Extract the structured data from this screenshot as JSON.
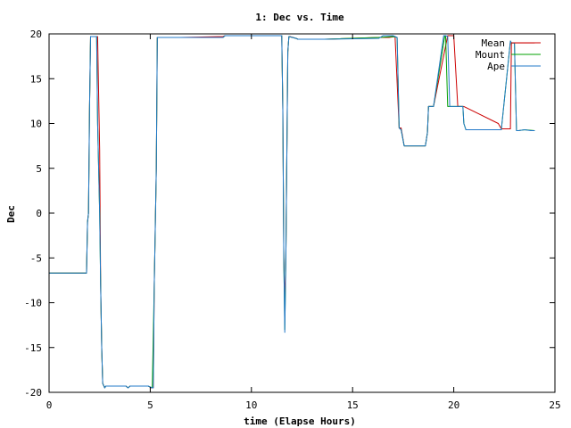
{
  "chart_data": {
    "type": "line",
    "title": "1: Dec vs. Time",
    "xlabel": "time (Elapse Hours)",
    "ylabel": "Dec",
    "xlim": [
      0,
      25
    ],
    "ylim": [
      -20,
      20
    ],
    "xticks": [
      0,
      5,
      10,
      15,
      20,
      25
    ],
    "yticks": [
      -20,
      -15,
      -10,
      -5,
      0,
      5,
      10,
      15,
      20
    ],
    "grid": false,
    "legend_position": "top-right",
    "series": [
      {
        "name": "Mean",
        "color": "#cc0000",
        "x": [
          0.0,
          1.85,
          1.9,
          1.95,
          2.0,
          2.05,
          2.1,
          2.2,
          2.3,
          2.4,
          2.5,
          2.55,
          2.6,
          2.65,
          2.75,
          2.8,
          3.0,
          3.8,
          3.9,
          4.0,
          4.9,
          5.05,
          5.1,
          5.15,
          5.2,
          5.3,
          5.35,
          6.5,
          8.6,
          8.7,
          11.5,
          11.55,
          11.6,
          11.65,
          11.7,
          11.8,
          11.85,
          11.9,
          12.2,
          12.3,
          13.6,
          13.7,
          16.3,
          16.5,
          16.8,
          17.1,
          17.3,
          17.4,
          17.55,
          17.6,
          18.6,
          18.7,
          18.75,
          19.0,
          19.7,
          19.75,
          20.0,
          20.2,
          20.45,
          20.5,
          22.2,
          22.35,
          22.4,
          22.8,
          22.85,
          23.0,
          24.0
        ],
        "y": [
          -6.7,
          -6.7,
          -1.0,
          0.0,
          12.0,
          19.7,
          19.7,
          19.7,
          19.7,
          19.7,
          7.0,
          -8.0,
          -15.0,
          -19.0,
          -19.5,
          -19.3,
          -19.3,
          -19.3,
          -19.5,
          -19.3,
          -19.3,
          -19.5,
          -19.5,
          -19.5,
          -8.0,
          5.0,
          19.6,
          19.6,
          19.7,
          19.8,
          19.8,
          11.5,
          -5.0,
          -10.0,
          -5.0,
          18.0,
          19.7,
          19.7,
          19.5,
          19.4,
          19.4,
          19.4,
          19.6,
          19.6,
          19.6,
          19.7,
          9.5,
          9.5,
          7.5,
          7.5,
          7.5,
          9.0,
          11.9,
          11.9,
          19.8,
          19.8,
          19.8,
          11.9,
          11.9,
          11.9,
          10.0,
          9.4,
          9.4,
          9.4,
          19.0,
          19.0,
          19.0
        ],
        "note_points": 0
      },
      {
        "name": "Mount",
        "color": "#00a000",
        "x": [
          0.0,
          1.85,
          1.9,
          1.95,
          2.0,
          2.05,
          2.2,
          2.35,
          2.4,
          2.5,
          2.55,
          2.6,
          2.65,
          2.75,
          2.8,
          3.0,
          3.8,
          3.9,
          4.0,
          4.9,
          5.1,
          5.2,
          5.3,
          5.35,
          8.6,
          8.7,
          11.5,
          11.55,
          11.6,
          11.65,
          11.7,
          11.8,
          11.85,
          12.2,
          12.3,
          13.6,
          16.3,
          17.0,
          17.2,
          17.3,
          17.4,
          17.55,
          17.6,
          18.6,
          18.7,
          18.75,
          19.0,
          19.55,
          19.6,
          19.7,
          20.0,
          20.45,
          20.5,
          20.6,
          22.2,
          22.35,
          22.8,
          22.85,
          23.0,
          23.1,
          23.2,
          23.5,
          24.0
        ],
        "y": [
          -6.7,
          -6.7,
          -1.0,
          0.0,
          12.0,
          19.7,
          19.7,
          19.7,
          10.0,
          0.0,
          -8.0,
          -15.0,
          -19.0,
          -19.5,
          -19.3,
          -19.3,
          -19.3,
          -19.5,
          -19.3,
          -19.3,
          -19.5,
          -8.0,
          5.0,
          19.6,
          19.6,
          19.8,
          19.8,
          11.5,
          -5.0,
          -13.0,
          -5.0,
          18.0,
          19.7,
          19.5,
          19.4,
          19.4,
          19.6,
          19.7,
          19.6,
          9.5,
          9.3,
          7.5,
          7.5,
          7.5,
          9.0,
          11.9,
          11.9,
          19.7,
          19.7,
          11.9,
          11.9,
          11.9,
          10.0,
          9.3,
          9.3,
          9.3,
          19.2,
          19.0,
          19.0,
          9.2,
          9.2,
          9.3,
          9.2
        ],
        "note_points": 0
      },
      {
        "name": "Ape",
        "color": "#2278c8",
        "x": [
          0.0,
          1.85,
          1.9,
          1.95,
          2.0,
          2.05,
          2.2,
          2.35,
          2.4,
          2.5,
          2.55,
          2.6,
          2.65,
          2.75,
          2.8,
          3.0,
          3.8,
          3.9,
          4.0,
          4.9,
          5.1,
          5.15,
          5.2,
          5.3,
          5.35,
          8.6,
          8.7,
          11.5,
          11.55,
          11.6,
          11.65,
          11.7,
          11.8,
          11.85,
          12.2,
          12.3,
          13.6,
          16.3,
          16.5,
          17.0,
          17.2,
          17.3,
          17.4,
          17.55,
          17.6,
          18.6,
          18.7,
          18.75,
          19.0,
          19.5,
          19.6,
          19.7,
          19.8,
          20.0,
          20.45,
          20.5,
          20.6,
          22.2,
          22.35,
          22.8,
          22.85,
          23.0,
          23.1,
          23.2,
          23.5,
          23.8,
          24.0
        ],
        "y": [
          -6.7,
          -6.7,
          -1.0,
          0.0,
          12.0,
          19.7,
          19.7,
          19.7,
          10.0,
          0.0,
          -8.0,
          -15.0,
          -19.0,
          -19.5,
          -19.3,
          -19.3,
          -19.3,
          -19.5,
          -19.3,
          -19.3,
          -19.5,
          -19.5,
          -8.0,
          5.0,
          19.6,
          19.6,
          19.8,
          19.8,
          11.5,
          -5.0,
          -13.3,
          -5.0,
          18.0,
          19.7,
          19.5,
          19.4,
          19.4,
          19.5,
          19.8,
          19.8,
          19.6,
          9.5,
          9.3,
          7.5,
          7.5,
          7.5,
          9.0,
          11.9,
          11.9,
          19.8,
          19.8,
          19.7,
          11.9,
          11.9,
          11.9,
          10.0,
          9.3,
          9.3,
          9.3,
          19.2,
          19.0,
          19.0,
          9.2,
          9.2,
          9.3,
          9.2,
          9.2
        ],
        "note_points": 0
      }
    ]
  }
}
